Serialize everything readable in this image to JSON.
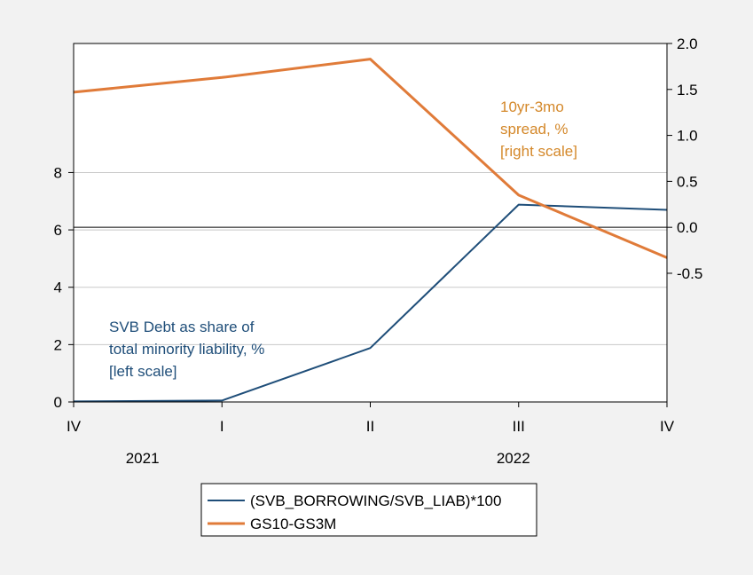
{
  "chart_data": {
    "type": "line",
    "x_categories": [
      "IV",
      "I",
      "II",
      "III",
      "IV"
    ],
    "year_labels": [
      {
        "label": "2021",
        "span": [
          0,
          1
        ]
      },
      {
        "label": "2022",
        "span": [
          3,
          3
        ]
      }
    ],
    "left_axis": {
      "ylim": [
        0,
        12.5
      ],
      "ticks": [
        0,
        2,
        4,
        6,
        8
      ]
    },
    "right_axis": {
      "ylim": [
        -1.9,
        2.0
      ],
      "ticks": [
        -0.5,
        0.0,
        0.5,
        1.0,
        1.5,
        2.0
      ],
      "tick_labels": [
        "-0.5",
        "0.0",
        "0.5",
        "1.0",
        "1.5",
        "2.0"
      ]
    },
    "series": [
      {
        "name": "(SVB_BORROWING/SVB_LIAB)*100",
        "axis": "left",
        "color": "#1f4e79",
        "values": [
          0.02,
          0.05,
          1.88,
          6.88,
          6.7
        ]
      },
      {
        "name": "GS10-GS3M",
        "axis": "right",
        "color": "#e07b39",
        "values": [
          1.47,
          1.63,
          1.83,
          0.35,
          -0.33
        ]
      }
    ],
    "annotations": [
      {
        "series": 1,
        "color": "#d4882a",
        "lines": [
          "10yr-3mo",
          "spread, %",
          "[right scale]"
        ]
      },
      {
        "series": 0,
        "color": "#1f4e79",
        "lines": [
          "SVB Debt as share of",
          "total minority liability, %",
          "[left scale]"
        ]
      }
    ],
    "grid": true,
    "legend_position": "bottom-center"
  }
}
